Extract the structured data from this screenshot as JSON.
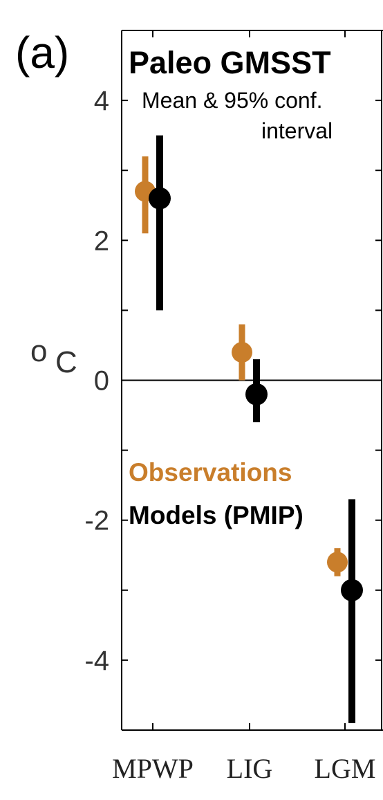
{
  "chart_data": {
    "type": "scatter",
    "panel_label": "(a)",
    "title": "Paleo GMSST",
    "subtitle_lines": [
      "Mean & 95% conf.",
      "interval"
    ],
    "ylabel": "o C",
    "ylim": [
      -5,
      5
    ],
    "yticks": [
      -4,
      -2,
      0,
      2,
      4
    ],
    "ytick_labels": [
      "-4",
      "-2",
      "0",
      "2",
      "4"
    ],
    "categories": [
      "MPWP",
      "LIG",
      "LGM"
    ],
    "zero_line": true,
    "grid": false,
    "legend_position": "center-left",
    "series": [
      {
        "name": "Observations",
        "color": "#c97e2b",
        "mean": [
          2.7,
          0.4,
          -2.6
        ],
        "lower": [
          2.1,
          0.0,
          -2.8
        ],
        "upper": [
          3.2,
          0.8,
          -2.4
        ]
      },
      {
        "name": "Models (PMIP)",
        "color": "#000000",
        "mean": [
          2.6,
          -0.2,
          -3.0
        ],
        "lower": [
          1.0,
          -0.6,
          -4.9
        ],
        "upper": [
          3.5,
          0.3,
          -1.7
        ]
      }
    ]
  }
}
